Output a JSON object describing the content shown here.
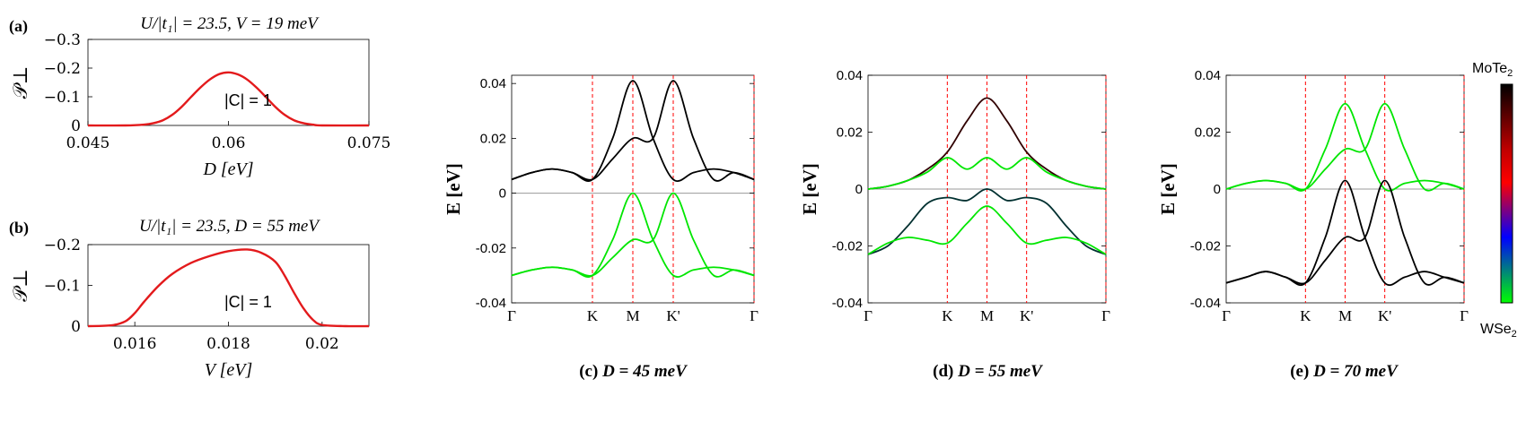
{
  "colorbar": {
    "top_label": "MoTe",
    "top_sub": "2",
    "bottom_label": "WSe",
    "bottom_sub": "2",
    "colors": [
      "#000000",
      "#c00000",
      "#ff0000",
      "#0000ff",
      "#00ff00"
    ]
  },
  "colors": {
    "curve_red": "#e31a1c",
    "dashed": "#ff0000",
    "band_black": "#000000",
    "band_green": "#00e600",
    "zero_line": "#999999"
  },
  "chart_data": [
    {
      "panel": "(a)",
      "type": "line",
      "title": "U/|t₁| = 23.5, V = 19 meV",
      "xlabel": "D [eV]",
      "ylabel": "𝒫⊥",
      "annotation": "|C| = 1",
      "xlim": [
        0.045,
        0.075
      ],
      "ylim": [
        0,
        -0.3
      ],
      "xticks": [
        "0.045",
        "0.06",
        "0.075"
      ],
      "yticks": [
        "0",
        "−0.1",
        "−0.2",
        "−0.3"
      ],
      "series": [
        {
          "x": [
            0.045,
            0.049,
            0.051,
            0.052,
            0.053,
            0.054,
            0.055,
            0.056,
            0.057,
            0.058,
            0.059,
            0.06,
            0.061,
            0.062,
            0.063,
            0.064,
            0.065,
            0.066,
            0.067,
            0.068,
            0.069,
            0.07,
            0.075
          ],
          "y": [
            0,
            0,
            -0.003,
            -0.008,
            -0.018,
            -0.037,
            -0.065,
            -0.099,
            -0.132,
            -0.16,
            -0.179,
            -0.185,
            -0.178,
            -0.16,
            -0.132,
            -0.099,
            -0.065,
            -0.037,
            -0.018,
            -0.008,
            -0.003,
            0,
            0
          ]
        }
      ]
    },
    {
      "panel": "(b)",
      "type": "line",
      "title": "U/|t₁| = 23.5, D = 55 meV",
      "xlabel": "V [eV]",
      "ylabel": "𝒫⊥",
      "annotation": "|C| = 1",
      "xlim": [
        0.015,
        0.021
      ],
      "ylim": [
        0,
        -0.2
      ],
      "xticks": [
        "0.016",
        "0.018",
        "0.02"
      ],
      "yticks": [
        "0",
        "−0.1",
        "−0.2"
      ],
      "series": [
        {
          "x": [
            0.015,
            0.0155,
            0.0158,
            0.016,
            0.0162,
            0.0165,
            0.0168,
            0.0172,
            0.0176,
            0.018,
            0.0184,
            0.0187,
            0.019,
            0.0192,
            0.0194,
            0.0196,
            0.0198,
            0.02,
            0.0205,
            0.021
          ],
          "y": [
            0,
            -0.002,
            -0.012,
            -0.032,
            -0.06,
            -0.098,
            -0.128,
            -0.155,
            -0.172,
            -0.184,
            -0.188,
            -0.18,
            -0.158,
            -0.124,
            -0.082,
            -0.044,
            -0.016,
            -0.003,
            0,
            0
          ]
        }
      ]
    },
    {
      "panel": "(c)",
      "type": "line",
      "caption_prefix": "(c)",
      "caption": "D = 45 meV",
      "ylabel": "E [eV]",
      "ylim": [
        -0.04,
        0.043
      ],
      "yticks": [
        "-0.04",
        "-0.02",
        "0",
        "0.02",
        "0.04"
      ],
      "kpoints": [
        "Γ",
        "K",
        "M",
        "K'",
        "Γ"
      ],
      "kpos": [
        0,
        2,
        3,
        4,
        6
      ],
      "bands": [
        {
          "name": "upper1",
          "color": "#000000",
          "y": [
            0.005,
            0.0075,
            0.0088,
            0.0075,
            0.005,
            0.02,
            0.041,
            0.02,
            0.005,
            0.0075,
            0.0088,
            0.0075,
            0.005
          ]
        },
        {
          "name": "upper2",
          "color": "#000000",
          "y": [
            0.005,
            0.0075,
            0.0088,
            0.0075,
            0.005,
            0.02,
            0.041,
            0.02,
            0.005,
            0.0075,
            0.0088,
            0.0075,
            0.005
          ],
          "shift": true
        },
        {
          "name": "lower1",
          "color": "#00e600",
          "y": [
            -0.03,
            -0.028,
            -0.027,
            -0.028,
            -0.03,
            -0.017,
            0.0,
            -0.017,
            -0.03,
            -0.028,
            -0.027,
            -0.028,
            -0.03
          ]
        },
        {
          "name": "lower2",
          "color": "#00e600",
          "y": [
            -0.03,
            -0.028,
            -0.027,
            -0.028,
            -0.03,
            -0.017,
            0.0,
            -0.017,
            -0.03,
            -0.028,
            -0.027,
            -0.028,
            -0.03
          ],
          "shift": true
        }
      ]
    },
    {
      "panel": "(d)",
      "type": "line",
      "caption_prefix": "(d)",
      "caption": "D = 55 meV",
      "ylabel": "E [eV]",
      "ylim": [
        -0.04,
        0.04
      ],
      "yticks": [
        "-0.04",
        "-0.02",
        "0",
        "0.02",
        "0.04"
      ],
      "kpoints": [
        "Γ",
        "K",
        "M",
        "K'",
        "Γ"
      ],
      "kpos": [
        0,
        2,
        3,
        4,
        6
      ],
      "bands": [
        {
          "name": "b1",
          "color": "#300000",
          "y": [
            0,
            0.001,
            0.003,
            0.007,
            0.013,
            0.024,
            0.032,
            0.024,
            0.013,
            0.007,
            0.003,
            0.001,
            0
          ]
        },
        {
          "name": "b2",
          "color": "#00e600",
          "y": [
            0,
            0.001,
            0.003,
            0.006,
            0.011,
            0.007,
            0.011,
            0.007,
            0.011,
            0.006,
            0.003,
            0.001,
            0
          ]
        },
        {
          "name": "b3",
          "color": "#003030",
          "y": [
            -0.023,
            -0.02,
            -0.013,
            -0.005,
            -0.003,
            -0.004,
            0.0,
            -0.004,
            -0.003,
            -0.005,
            -0.013,
            -0.02,
            -0.023
          ]
        },
        {
          "name": "b4",
          "color": "#00e600",
          "y": [
            -0.023,
            -0.019,
            -0.017,
            -0.018,
            -0.019,
            -0.012,
            -0.006,
            -0.012,
            -0.019,
            -0.018,
            -0.017,
            -0.019,
            -0.023
          ]
        }
      ]
    },
    {
      "panel": "(e)",
      "type": "line",
      "caption_prefix": "(e)",
      "caption": "D = 70 meV",
      "ylabel": "E [eV]",
      "ylim": [
        -0.04,
        0.04
      ],
      "yticks": [
        "-0.04",
        "-0.02",
        "0",
        "0.02",
        "0.04"
      ],
      "kpoints": [
        "Γ",
        "K",
        "M",
        "K'",
        "Γ"
      ],
      "kpos": [
        0,
        2,
        3,
        4,
        6
      ],
      "bands": [
        {
          "name": "green1",
          "color": "#00e600",
          "y": [
            0.0,
            0.002,
            0.003,
            0.002,
            0.0,
            0.014,
            0.03,
            0.014,
            0.0,
            0.002,
            0.003,
            0.002,
            0.0
          ]
        },
        {
          "name": "green2",
          "color": "#00e600",
          "y": [
            0.0,
            0.002,
            0.003,
            0.002,
            0.0,
            0.014,
            0.03,
            0.014,
            0.0,
            0.002,
            0.003,
            0.002,
            0.0
          ],
          "shift": true
        },
        {
          "name": "black1",
          "color": "#000000",
          "y": [
            -0.033,
            -0.031,
            -0.029,
            -0.031,
            -0.033,
            -0.017,
            0.003,
            -0.017,
            -0.033,
            -0.031,
            -0.029,
            -0.031,
            -0.033
          ]
        },
        {
          "name": "black2",
          "color": "#000000",
          "y": [
            -0.033,
            -0.031,
            -0.029,
            -0.031,
            -0.033,
            -0.017,
            0.003,
            -0.017,
            -0.033,
            -0.031,
            -0.029,
            -0.031,
            -0.033
          ],
          "shift": true
        }
      ]
    }
  ]
}
